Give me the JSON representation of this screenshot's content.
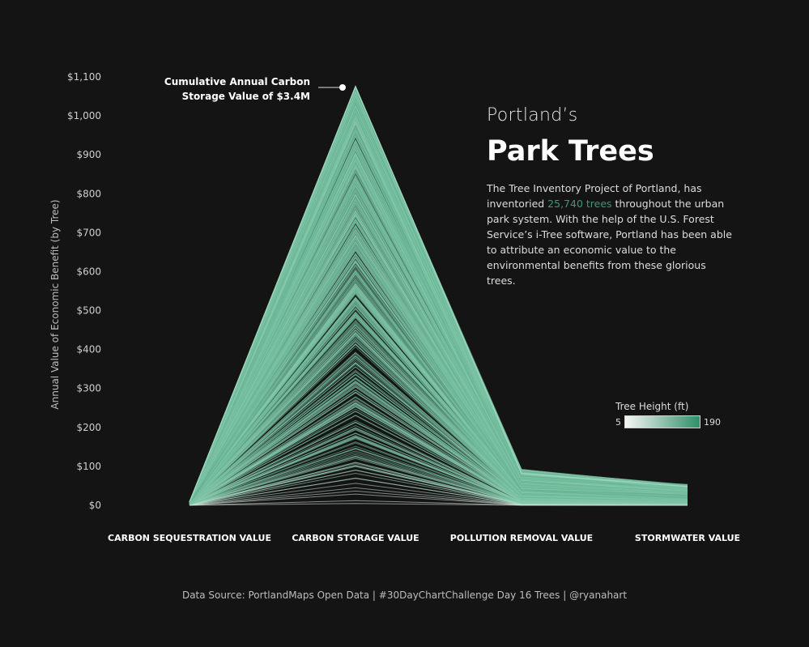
{
  "title_block": {
    "kicker": "Portland’s",
    "title": "Park Trees",
    "desc_part1": "The Tree Inventory Project of Portland, has inventoried ",
    "desc_highlight": "25,740 trees",
    "desc_part2": " throughout the urban park system.   With the help of the U.S. Forest Service’s i-Tree software, Portland has been able to attribute an economic value to the environmental benefits from these glorious trees."
  },
  "annotation": {
    "line1": "Cumulative Annual Carbon",
    "line2": "Storage Value of $3.4M"
  },
  "legend": {
    "title": "Tree Height (ft)",
    "min": "5",
    "max": "190",
    "color_min": "#f5f7f5",
    "color_max": "#2f8f68"
  },
  "footer": "Data Source: PortlandMaps Open Data | #30DayChartChallenge Day 16 Trees | @ryanahart",
  "colors": {
    "background": "#141414",
    "line_light": "#eef3ef",
    "line_mid": "#8fcfb3",
    "line_dark": "#2f8f68"
  },
  "chart_data": {
    "type": "line",
    "subtype": "parallel-coordinates",
    "categories": [
      "CARBON SEQUESTRATION VALUE",
      "CARBON STORAGE VALUE",
      "POLLUTION REMOVAL VALUE",
      "STORMWATER VALUE"
    ],
    "ylabel": "Annual Value of Economic Benefit (by Tree)",
    "ylim": [
      0,
      1100
    ],
    "yticks": [
      "$0",
      "$100",
      "$200",
      "$300",
      "$400",
      "$500",
      "$600",
      "$700",
      "$800",
      "$900",
      "$1,000",
      "$1,100"
    ],
    "ytick_values": [
      0,
      100,
      200,
      300,
      400,
      500,
      600,
      700,
      800,
      900,
      1000,
      1100
    ],
    "max_series": {
      "values": [
        8,
        1075,
        82,
        48
      ]
    },
    "grid": false,
    "legend_position": "right"
  }
}
